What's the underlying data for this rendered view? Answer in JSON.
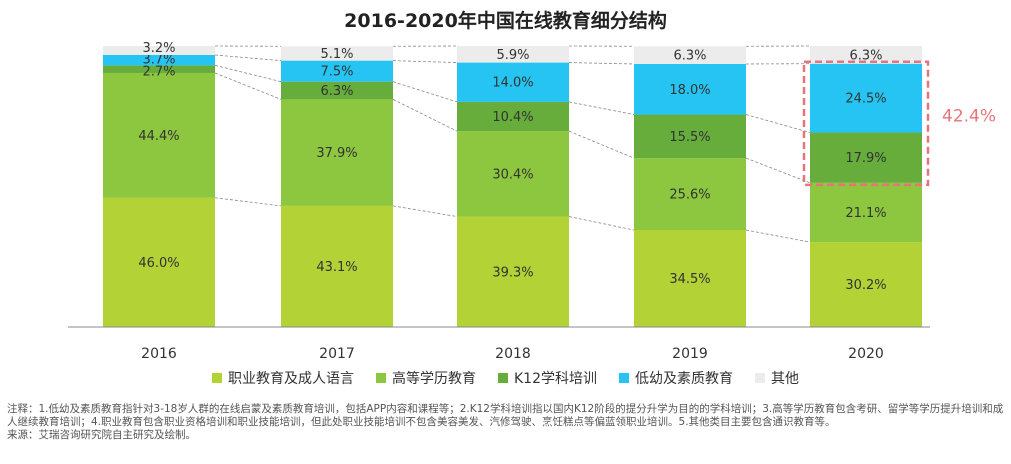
{
  "title": "2016-2020年中国在线教育细分结构",
  "colors": {
    "vocational": "#b2d235",
    "higher": "#8dc63f",
    "k12": "#66ad3c",
    "early": "#25c4f2",
    "other": "#ececec",
    "highlight": "#e8737a"
  },
  "chart_data": {
    "type": "bar",
    "stacked": true,
    "percent": true,
    "categories": [
      "2016",
      "2017",
      "2018",
      "2019",
      "2020"
    ],
    "series": [
      {
        "name": "职业教育及成人语言",
        "key": "vocational",
        "values": [
          46.0,
          43.1,
          39.3,
          34.5,
          30.2
        ],
        "labels": [
          "46.0%",
          "43.1%",
          "39.3%",
          "34.5%",
          "30.2%"
        ]
      },
      {
        "name": "高等学历教育",
        "key": "higher",
        "values": [
          44.4,
          37.9,
          30.4,
          25.6,
          21.1
        ],
        "labels": [
          "44.4%",
          "37.9%",
          "30.4%",
          "25.6%",
          "21.1%"
        ]
      },
      {
        "name": "K12学科培训",
        "key": "k12",
        "values": [
          2.7,
          6.3,
          10.4,
          15.5,
          17.9
        ],
        "labels": [
          "2.7%",
          "6.3%",
          "10.4%",
          "15.5%",
          "17.9%"
        ]
      },
      {
        "name": "低幼及素质教育",
        "key": "early",
        "values": [
          3.7,
          7.5,
          14.0,
          18.0,
          24.5
        ],
        "labels": [
          "3.7%",
          "7.5%",
          "14.0%",
          "18.0%",
          "24.5%"
        ]
      },
      {
        "name": "其他",
        "key": "other",
        "values": [
          3.2,
          5.1,
          5.9,
          6.3,
          6.3
        ],
        "labels": [
          "3.2%",
          "5.1%",
          "5.9%",
          "6.3%",
          "6.3%"
        ]
      }
    ],
    "annotation": {
      "text": "42.4%",
      "category": "2020",
      "series": [
        "K12学科培训",
        "低幼及素质教育"
      ]
    }
  },
  "notes": {
    "line1": "注释：1.低幼及素质教育指针对3-18岁人群的在线启蒙及素质教育培训，包括APP内容和课程等；2.K12学科培训指以国内K12阶段的提分升学为目的的学科培训；3.高等学历教育包含考研、留学等学历提升培训和成人继续教育培训；4.职业教育包含职业资格培训和职业技能培训，但此处职业技能培训不包含美容美发、汽修驾驶、烹饪糕点等偏蓝领职业培训。5.其他类目主要包含通识教育等。",
    "line2": "来源：艾瑞咨询研究院自主研究及绘制。"
  }
}
